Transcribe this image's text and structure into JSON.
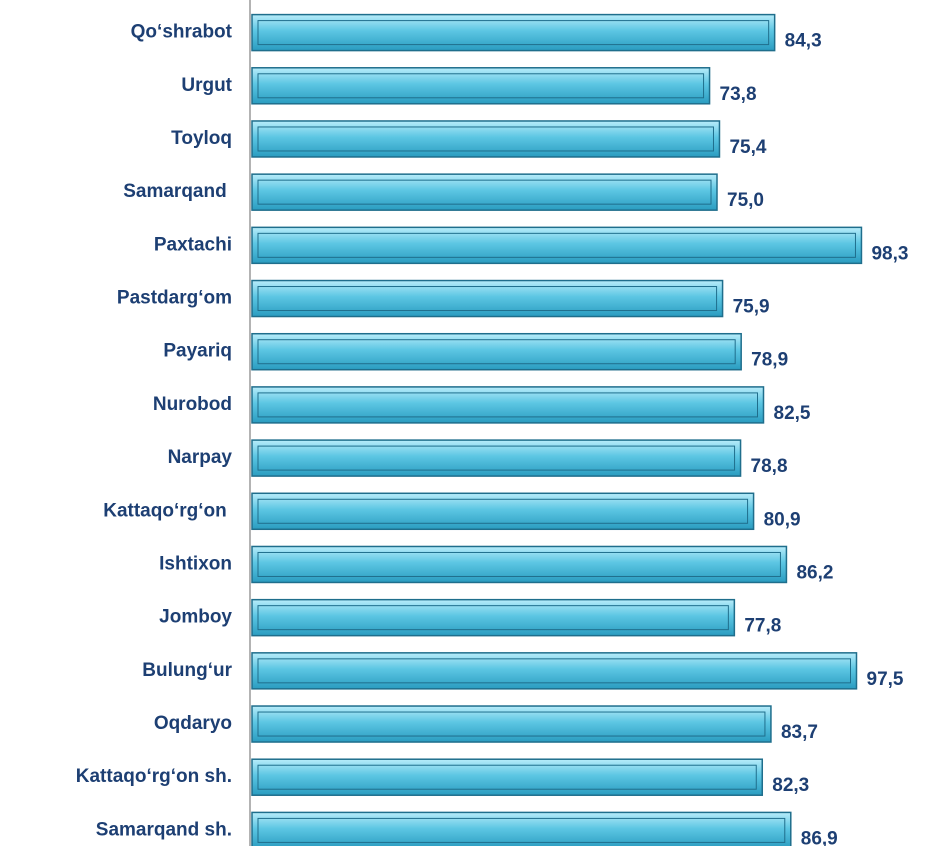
{
  "chart_data": {
    "type": "barh",
    "categories": [
      "Qo‘shrabot",
      "Urgut",
      "Toyloq",
      "Samarqand ",
      "Paxtachi",
      "Pastdarg‘om",
      "Payariq",
      "Nurobod",
      "Narpay",
      "Kattaqo‘rg‘on ",
      "Ishtixon",
      "Jomboy",
      "Bulung‘ur",
      "Oqdaryo",
      "Kattaqo‘rg‘on sh.",
      "Samarqand sh."
    ],
    "values": [
      84.3,
      73.8,
      75.4,
      75.0,
      98.3,
      75.9,
      78.9,
      82.5,
      78.8,
      80.9,
      86.2,
      77.8,
      97.5,
      83.7,
      82.3,
      86.9
    ],
    "value_labels": [
      "84,3",
      "73,8",
      "75,4",
      "75,0",
      "98,3",
      "75,9",
      "78,9",
      "82,5",
      "78,8",
      "80,9",
      "86,2",
      "77,8",
      "97,5",
      "83,7",
      "82,3",
      "86,9"
    ],
    "color": "#3bb3d4",
    "xlim": [
      0,
      100
    ]
  }
}
